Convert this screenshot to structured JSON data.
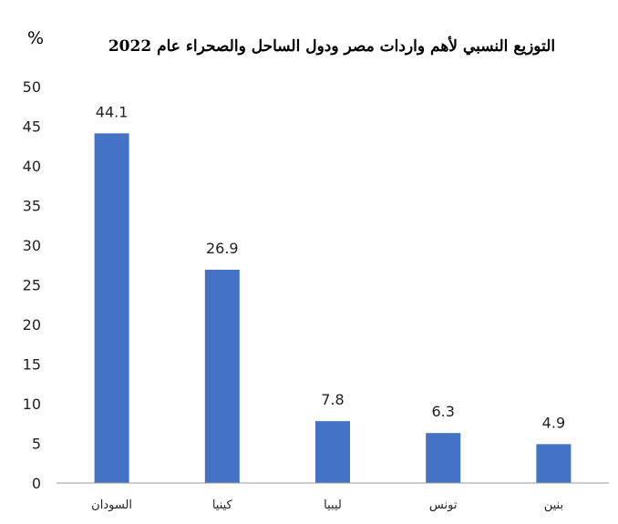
{
  "chart_data": {
    "type": "bar",
    "title": "التوزيع النسبي لأهم واردات مصر ودول الساحل والصحراء عام 2022",
    "unit_label": "%",
    "categories": [
      "السودان",
      "كينيا",
      "ليبيا",
      "تونس",
      "بنين"
    ],
    "values": [
      44.1,
      26.9,
      7.8,
      6.3,
      4.9
    ],
    "value_labels": [
      "44.1",
      "26.9",
      "7.8",
      "6.3",
      "4.9"
    ],
    "ylim": [
      0,
      50
    ],
    "yticks": [
      0,
      5,
      10,
      15,
      20,
      25,
      30,
      35,
      40,
      45,
      50
    ],
    "grid": false,
    "legend": "none",
    "bar_color": "#4472C4"
  }
}
